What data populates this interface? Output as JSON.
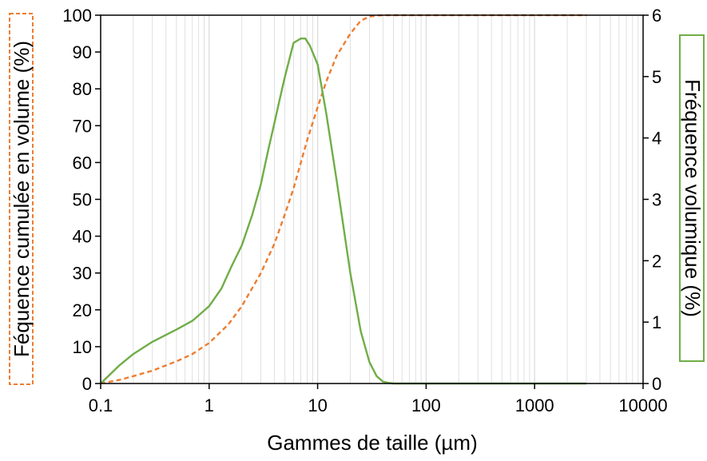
{
  "chart_data": {
    "type": "line",
    "xlabel": "Gammes de taille (µm)",
    "ylabel_left": "Féquence cumulée en volume (%)",
    "ylabel_right": "Fréquence volumique (%)",
    "x_scale": "log",
    "xlim": [
      0.1,
      10000
    ],
    "ylim_left": [
      0,
      100
    ],
    "ylim_right": [
      0,
      6
    ],
    "grid": "vertical-minor",
    "x_ticks": [
      "0.1",
      "1",
      "10",
      "100",
      "1000",
      "10000"
    ],
    "y_ticks_left": [
      "0",
      "10",
      "20",
      "30",
      "40",
      "50",
      "60",
      "70",
      "80",
      "90",
      "100"
    ],
    "y_ticks_right": [
      "0",
      "1",
      "2",
      "3",
      "4",
      "5",
      "6"
    ],
    "colors": {
      "cumulative": "#ED7D31",
      "frequency": "#70AD47",
      "grid": "#d9d9d9"
    },
    "series": [
      {
        "axis": "left",
        "style": "dashed",
        "x": [
          0.1,
          0.15,
          0.2,
          0.3,
          0.5,
          0.7,
          1,
          1.5,
          2,
          3,
          4,
          5,
          6,
          7,
          8,
          10,
          12,
          15,
          20,
          25,
          30,
          35,
          40,
          50,
          100,
          1000,
          3000
        ],
        "y": [
          0,
          1,
          2,
          3.5,
          6,
          8,
          11,
          16,
          21,
          30,
          38,
          46,
          53,
          60,
          66,
          75,
          82,
          89,
          95,
          98.5,
          99.6,
          99.9,
          100,
          100,
          100,
          100,
          100
        ]
      },
      {
        "axis": "right",
        "style": "solid",
        "x": [
          0.1,
          0.15,
          0.2,
          0.3,
          0.5,
          0.7,
          1,
          1.3,
          1.6,
          2,
          2.5,
          3,
          3.5,
          4,
          4.5,
          5,
          6,
          7,
          7.7,
          8.5,
          10,
          12,
          15,
          20,
          25,
          30,
          35,
          40,
          45,
          50,
          100,
          1000,
          3000
        ],
        "y": [
          0,
          0.3,
          0.48,
          0.68,
          0.88,
          1.02,
          1.26,
          1.55,
          1.9,
          2.25,
          2.75,
          3.25,
          3.8,
          4.25,
          4.65,
          5.0,
          5.55,
          5.62,
          5.62,
          5.5,
          5.2,
          4.4,
          3.3,
          1.8,
          0.85,
          0.35,
          0.12,
          0.03,
          0.01,
          0,
          0,
          0,
          0
        ]
      }
    ]
  }
}
